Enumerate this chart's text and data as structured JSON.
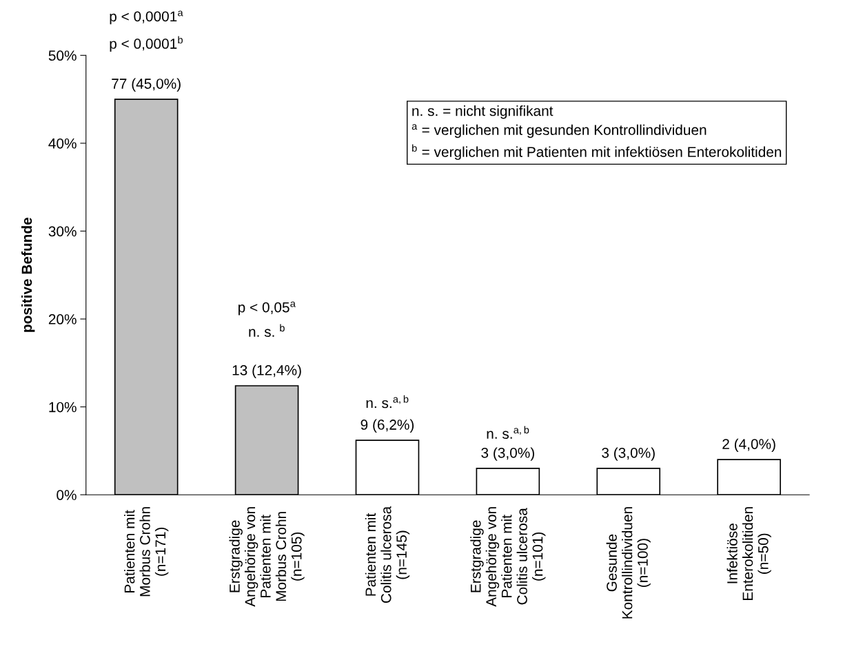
{
  "chart_data": {
    "type": "bar",
    "ylabel": "positive Befunde",
    "categories": [
      "Patienten mit\nMorbus Crohn\n(n=171)",
      "Erstgradige\nAngehörige von\nPatienten mit\nMorbus Crohn\n(n=105)",
      "Patienten mit\nColitis ulcerosa\n(n=145)",
      "Erstgradige\nAngehörige von\nPatienten mit\nColitis ulcerosa\n(n=101)",
      "Gesunde\nKontrollindividuen\n(n=100)",
      "Infektiöse\nEnterokolitiden\n(n=50)"
    ],
    "values": [
      45.0,
      12.4,
      6.2,
      3.0,
      3.0,
      4.0
    ],
    "colors": [
      "#c0c0c0",
      "#c0c0c0",
      "#ffffff",
      "#ffffff",
      "#ffffff",
      "#ffffff"
    ],
    "value_labels": [
      "77 (45,0%)",
      "13 (12,4%)",
      "9 (6,2%)",
      "3 (3,0%)",
      "3 (3,0%)",
      "2 (4,0%)"
    ],
    "ylim": [
      0,
      50
    ],
    "yticks": [
      {
        "value": 0,
        "label": "0%"
      },
      {
        "value": 10,
        "label": "10%"
      },
      {
        "value": 20,
        "label": "20%"
      },
      {
        "value": 30,
        "label": "30%"
      },
      {
        "value": 40,
        "label": "40%"
      },
      {
        "value": 50,
        "label": "50%"
      }
    ],
    "grid": false,
    "legend": false,
    "annotations": [
      "p < 0,0001$^{a}$",
      "p < 0,0001$^{b}$",
      "p < 0,05$^{a}$",
      "n. s. $^{b}$",
      "n. s.$^{a,b}$",
      "n. s.$^{a,b}$",
      "n. s. = nicht signifikant",
      "$^{a}$ = verglichen mit gesunden Kontrollindividuen",
      "$^{b}$ = verglichen mit Patienten mit infektiösen Enterokolitiden"
    ]
  }
}
